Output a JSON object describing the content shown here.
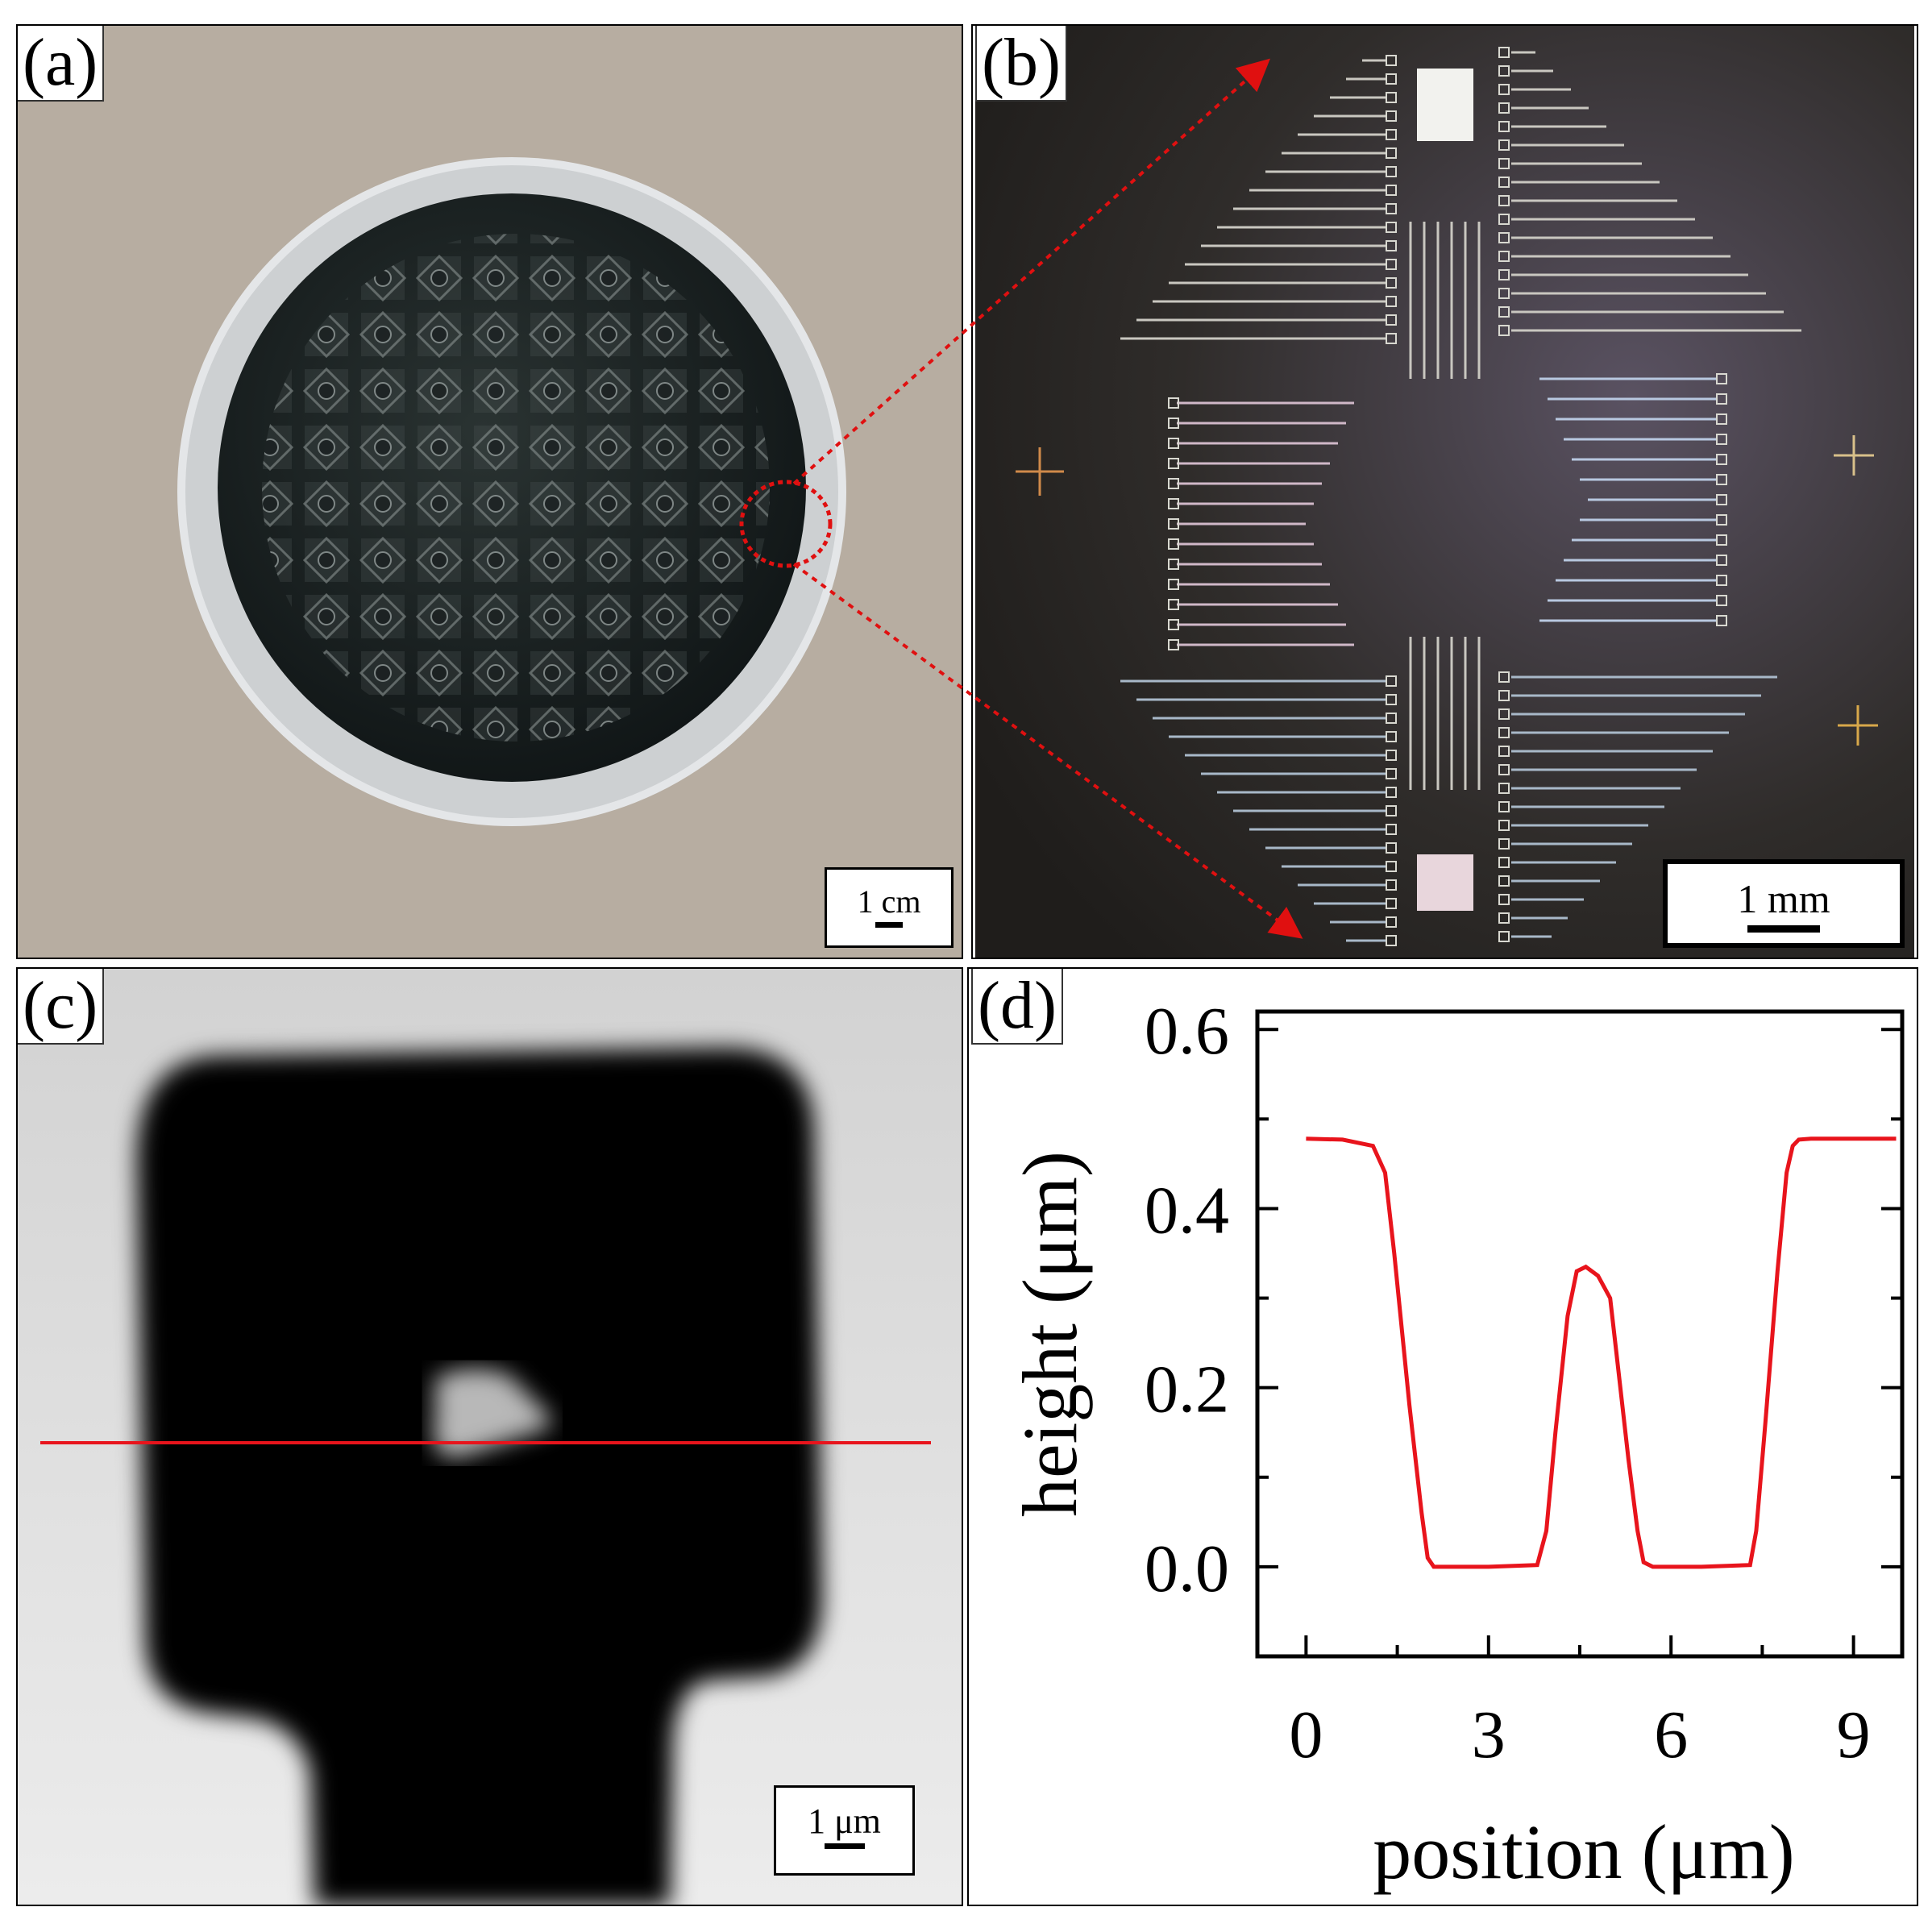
{
  "panels": {
    "a": {
      "label": "(a)",
      "scale_bar": "1 cm"
    },
    "b": {
      "label": "(b)",
      "scale_bar": "1 mm"
    },
    "c": {
      "label": "(c)",
      "scale_bar": "1 μm"
    },
    "d": {
      "label": "(d)"
    }
  },
  "colors": {
    "profile_line": "#e8141c",
    "zoom_arrows": "#e01010",
    "background": "#ffffff"
  },
  "chart_data": {
    "type": "line",
    "xlabel": "position (μm)",
    "ylabel": "height (μm)",
    "xlim": [
      -0.8,
      9.8
    ],
    "ylim": [
      -0.1,
      0.62
    ],
    "xticks": [
      0,
      3,
      6,
      9
    ],
    "xtick_labels": [
      "0",
      "3",
      "6",
      "9"
    ],
    "yticks": [
      0.0,
      0.2,
      0.4,
      0.6
    ],
    "ytick_labels": [
      "0.0",
      "0.2",
      "0.4",
      "0.6"
    ],
    "grid": false,
    "series": [
      {
        "color": "#e8141c",
        "x": [
          0.0,
          0.6,
          1.1,
          1.3,
          1.45,
          1.7,
          1.9,
          2.0,
          2.1,
          2.3,
          3.0,
          3.8,
          3.95,
          4.1,
          4.3,
          4.45,
          4.6,
          4.8,
          5.0,
          5.1,
          5.3,
          5.45,
          5.55,
          5.7,
          6.5,
          7.3,
          7.4,
          7.55,
          7.75,
          7.9,
          8.0,
          8.1,
          8.3,
          9.0,
          9.7
        ],
        "y": [
          0.478,
          0.477,
          0.47,
          0.44,
          0.35,
          0.18,
          0.06,
          0.01,
          0.0,
          0.0,
          0.0,
          0.002,
          0.04,
          0.15,
          0.28,
          0.33,
          0.335,
          0.325,
          0.3,
          0.24,
          0.12,
          0.04,
          0.005,
          0.0,
          0.0,
          0.002,
          0.04,
          0.16,
          0.33,
          0.44,
          0.47,
          0.477,
          0.478,
          0.478,
          0.478
        ]
      }
    ]
  }
}
